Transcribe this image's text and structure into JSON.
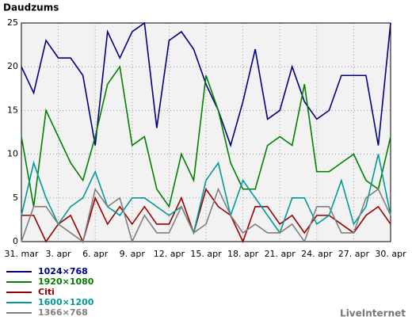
{
  "chart_data": {
    "type": "line",
    "title": "Daudzums",
    "watermark": "LiveInternet",
    "categories": [
      "31. mar",
      null,
      null,
      "3. apr",
      null,
      null,
      "6. apr",
      null,
      null,
      "9. apr",
      null,
      null,
      "12. apr",
      null,
      null,
      "15. apr",
      null,
      null,
      "18. apr",
      null,
      null,
      "21. apr",
      null,
      null,
      "24. apr",
      null,
      null,
      "27. apr",
      null,
      null,
      "30. apr"
    ],
    "ylim": [
      0,
      25
    ],
    "yticks": [
      0,
      5,
      10,
      15,
      20,
      25
    ],
    "grid": true,
    "series": [
      {
        "name": "1024×768",
        "color": "#000080",
        "values": [
          20,
          17,
          23,
          21,
          21,
          19,
          11,
          24,
          21,
          24,
          25,
          13,
          23,
          24,
          22,
          18,
          15,
          11,
          16,
          22,
          14,
          15,
          20,
          16,
          14,
          15,
          19,
          19,
          19,
          11,
          25
        ]
      },
      {
        "name": "1920×1080",
        "color": "#008000",
        "values": [
          12,
          4,
          15,
          12,
          9,
          7,
          12,
          18,
          20,
          11,
          12,
          6,
          4,
          10,
          7,
          19,
          15,
          9,
          6,
          6,
          11,
          12,
          11,
          18,
          8,
          8,
          9,
          10,
          7,
          6,
          12
        ]
      },
      {
        "name": "Citi",
        "color": "#990000",
        "values": [
          3,
          3,
          0,
          2,
          3,
          0,
          5,
          2,
          4,
          2,
          4,
          2,
          2,
          5,
          1,
          6,
          4,
          3,
          0,
          4,
          4,
          2,
          3,
          1,
          3,
          3,
          2,
          1,
          3,
          4,
          2
        ]
      },
      {
        "name": "1600×1200",
        "color": "#009999",
        "values": [
          3,
          9,
          5,
          2,
          4,
          5,
          8,
          4,
          3,
          5,
          5,
          4,
          3,
          4,
          1,
          7,
          9,
          3,
          7,
          5,
          3,
          1,
          5,
          5,
          2,
          3,
          7,
          2,
          4,
          10,
          3
        ]
      },
      {
        "name": "1366×768",
        "color": "#808080",
        "values": [
          0,
          4,
          4,
          2,
          1,
          0,
          6,
          4,
          5,
          0,
          3,
          1,
          1,
          4,
          1,
          2,
          6,
          3,
          1,
          2,
          1,
          1,
          2,
          0,
          4,
          4,
          1,
          1,
          5,
          6,
          3
        ]
      }
    ]
  }
}
